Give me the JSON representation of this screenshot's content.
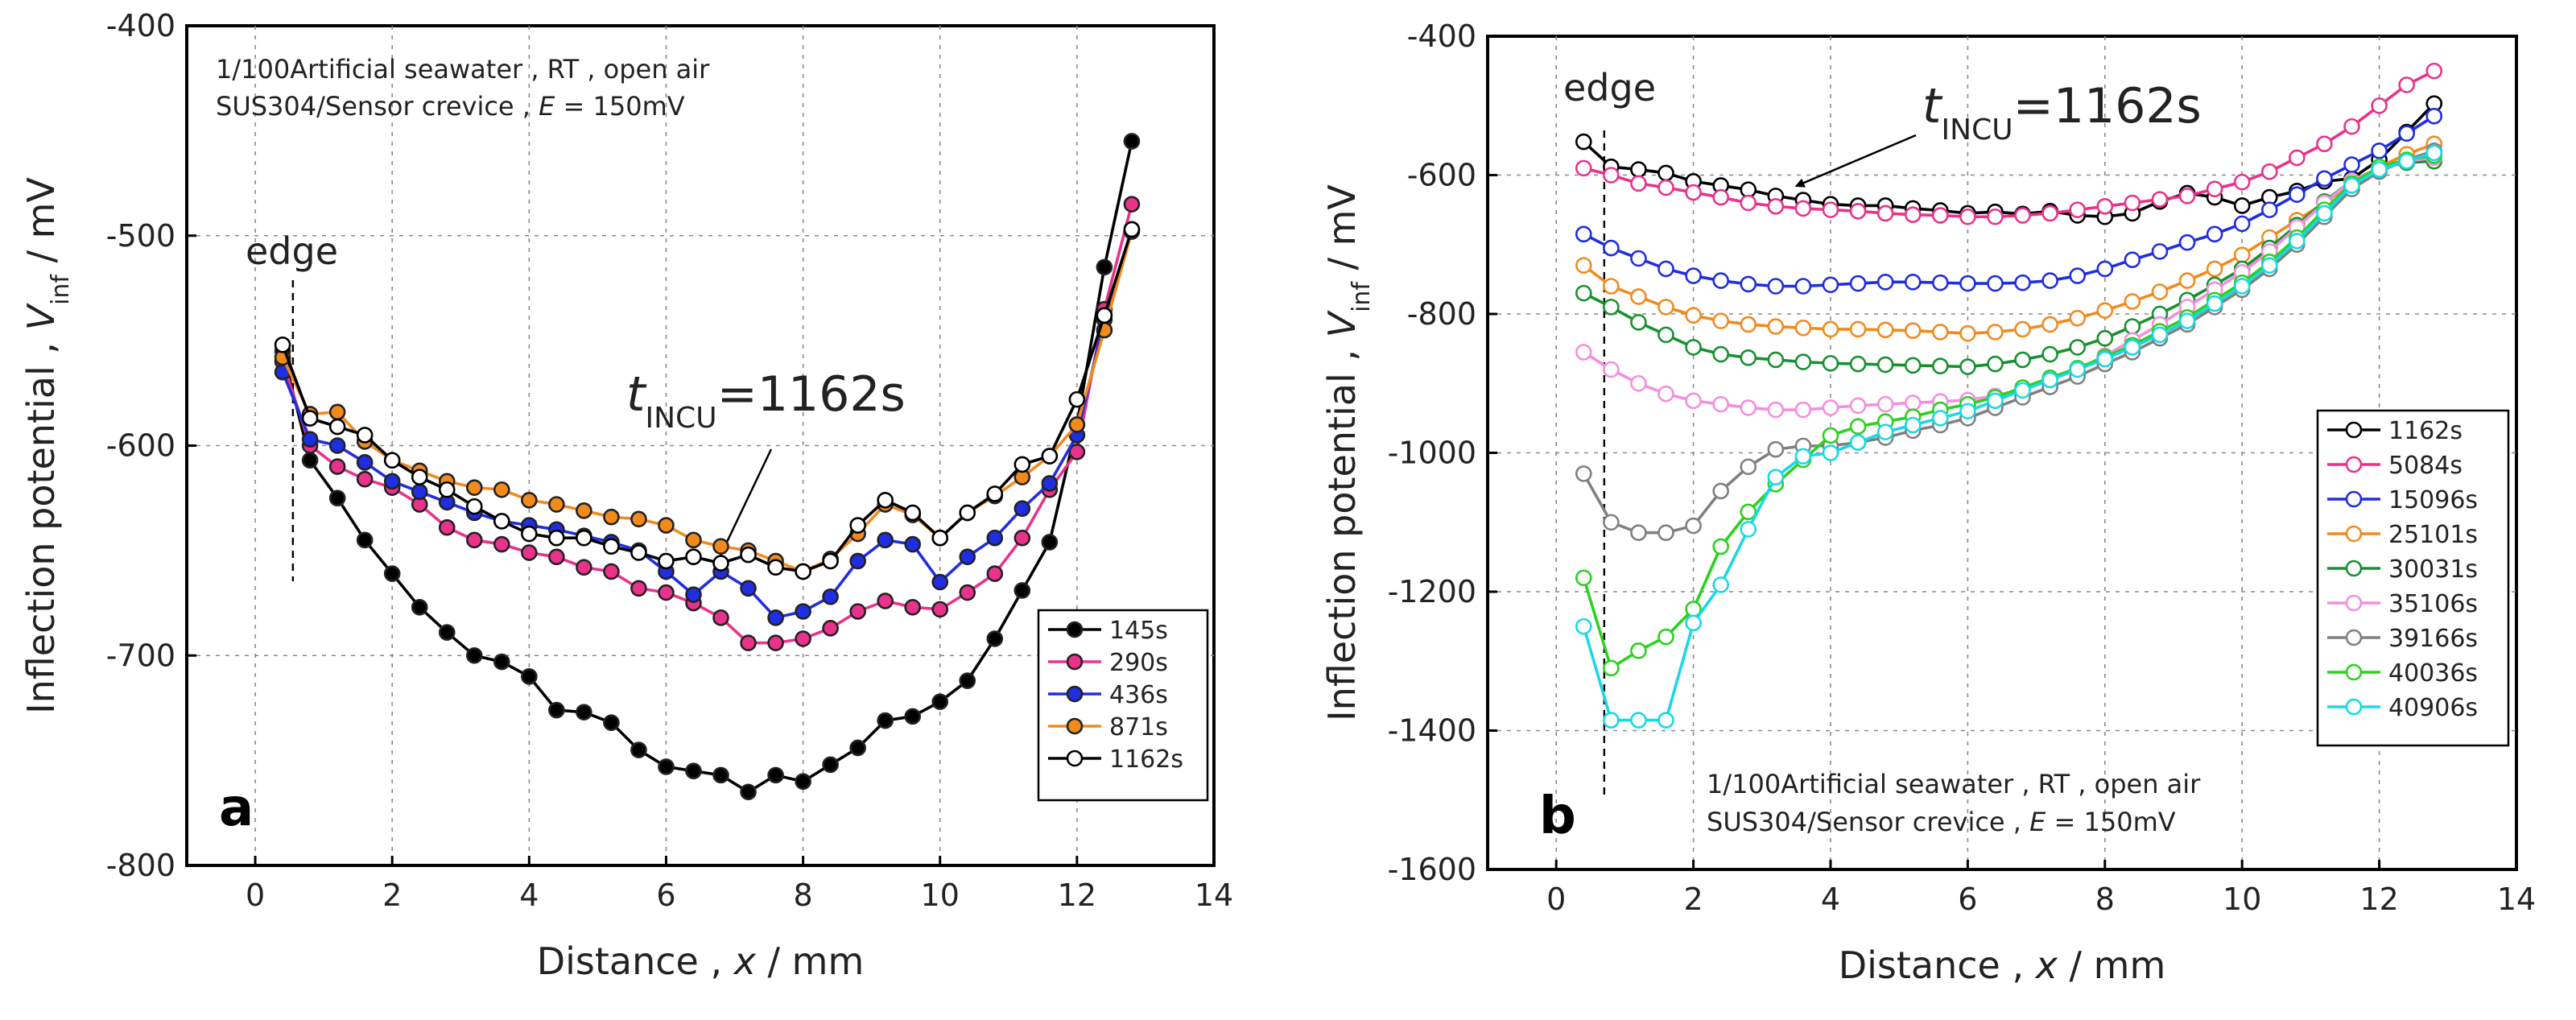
{
  "chart_data": [
    {
      "panel": "a",
      "type": "line",
      "xlabel": "Distance , x / mm",
      "ylabel": "Inflection potential , V_inf / mV",
      "xlim": [
        -1,
        14
      ],
      "ylim": [
        -800,
        -400
      ],
      "xticks": [
        0,
        2,
        4,
        6,
        8,
        10,
        12,
        14
      ],
      "yticks": [
        -400,
        -500,
        -600,
        -700,
        -800
      ],
      "annotation_lines": [
        "1/100Artificial seawater , RT , open air",
        "SUS304/Sensor crevice , E = 150mV"
      ],
      "edge_label": "edge",
      "edge_x": 0.55,
      "arrow_label": "t_INCU=1162s",
      "arrow_target": [
        6.8,
        -655
      ],
      "legend_position": "bottom-right",
      "series": [
        {
          "name": "145s",
          "color": "#000000",
          "filled": true,
          "x": [
            0.4,
            0.8,
            1.2,
            1.6,
            2.0,
            2.4,
            2.8,
            3.2,
            3.6,
            4.0,
            4.4,
            4.8,
            5.2,
            5.6,
            6.0,
            6.4,
            6.8,
            7.2,
            7.6,
            8.0,
            8.4,
            8.8,
            9.2,
            9.6,
            10.0,
            10.4,
            10.8,
            11.2,
            11.6,
            12.0,
            12.4,
            12.8
          ],
          "y": [
            -555,
            -607,
            -625,
            -645,
            -661,
            -677,
            -689,
            -700,
            -703,
            -710,
            -726,
            -727,
            -732,
            -745,
            -753,
            -755,
            -757,
            -765,
            -757,
            -760,
            -752,
            -744,
            -731,
            -729,
            -722,
            -712,
            -692,
            -669,
            -646,
            -590,
            -515,
            -455
          ]
        },
        {
          "name": "290s",
          "color": "#e8328c",
          "filled": true,
          "x": [
            0.4,
            0.8,
            1.2,
            1.6,
            2.0,
            2.4,
            2.8,
            3.2,
            3.6,
            4.0,
            4.4,
            4.8,
            5.2,
            5.6,
            6.0,
            6.4,
            6.8,
            7.2,
            7.6,
            8.0,
            8.4,
            8.8,
            9.2,
            9.6,
            10.0,
            10.4,
            10.8,
            11.2,
            11.6,
            12.0,
            12.4,
            12.8
          ],
          "y": [
            -560,
            -600,
            -610,
            -616,
            -620,
            -628,
            -639,
            -645,
            -647,
            -651,
            -653,
            -658,
            -660,
            -668,
            -670,
            -675,
            -682,
            -694,
            -694,
            -692,
            -687,
            -679,
            -674,
            -677,
            -678,
            -670,
            -661,
            -644,
            -621,
            -603,
            -535,
            -485
          ]
        },
        {
          "name": "436s",
          "color": "#1f2ee0",
          "filled": true,
          "x": [
            0.4,
            0.8,
            1.2,
            1.6,
            2.0,
            2.4,
            2.8,
            3.2,
            3.6,
            4.0,
            4.4,
            4.8,
            5.2,
            5.6,
            6.0,
            6.4,
            6.8,
            7.2,
            7.6,
            8.0,
            8.4,
            8.8,
            9.2,
            9.6,
            10.0,
            10.4,
            10.8,
            11.2,
            11.6,
            12.0,
            12.4,
            12.8
          ],
          "y": [
            -565,
            -597,
            -600,
            -608,
            -617,
            -622,
            -627,
            -632,
            -636,
            -638,
            -640,
            -643,
            -646,
            -650,
            -660,
            -671,
            -660,
            -668,
            -682,
            -679,
            -672,
            -655,
            -645,
            -647,
            -665,
            -653,
            -644,
            -630,
            -618,
            -595,
            -540,
            -497
          ]
        },
        {
          "name": "871s",
          "color": "#f28a1e",
          "filled": true,
          "x": [
            0.4,
            0.8,
            1.2,
            1.6,
            2.0,
            2.4,
            2.8,
            3.2,
            3.6,
            4.0,
            4.4,
            4.8,
            5.2,
            5.6,
            6.0,
            6.4,
            6.8,
            7.2,
            7.6,
            8.0,
            8.4,
            8.8,
            9.2,
            9.6,
            10.0,
            10.4,
            10.8,
            11.2,
            11.6,
            12.0,
            12.4,
            12.8
          ],
          "y": [
            -558,
            -585,
            -584,
            -598,
            -607,
            -612,
            -617,
            -620,
            -621,
            -626,
            -628,
            -631,
            -634,
            -635,
            -638,
            -645,
            -648,
            -650,
            -655,
            -660,
            -654,
            -642,
            -628,
            -633,
            -644,
            -632,
            -624,
            -615,
            -605,
            -590,
            -545,
            -498
          ]
        },
        {
          "name": "1162s",
          "color": "#000000",
          "filled": false,
          "x": [
            0.4,
            0.8,
            1.2,
            1.6,
            2.0,
            2.4,
            2.8,
            3.2,
            3.6,
            4.0,
            4.4,
            4.8,
            5.2,
            5.6,
            6.0,
            6.4,
            6.8,
            7.2,
            7.6,
            8.0,
            8.4,
            8.8,
            9.2,
            9.6,
            10.0,
            10.4,
            10.8,
            11.2,
            11.6,
            12.0,
            12.4,
            12.8
          ],
          "y": [
            -552,
            -587,
            -591,
            -595,
            -607,
            -615,
            -621,
            -629,
            -636,
            -642,
            -644,
            -644,
            -648,
            -651,
            -655,
            -653,
            -656,
            -652,
            -658,
            -660,
            -655,
            -638,
            -626,
            -632,
            -644,
            -632,
            -623,
            -609,
            -605,
            -578,
            -538,
            -497
          ]
        }
      ]
    },
    {
      "panel": "b",
      "type": "line",
      "xlabel": "Distance , x / mm",
      "ylabel": "Inflection potential , V_inf / mV",
      "xlim": [
        -1,
        14
      ],
      "ylim": [
        -1600,
        -400
      ],
      "xticks": [
        0,
        2,
        4,
        6,
        8,
        10,
        12,
        14
      ],
      "yticks": [
        -400,
        -600,
        -800,
        -1000,
        -1200,
        -1400,
        -1600
      ],
      "annotation_lines": [
        "1/100Artificial seawater , RT , open air",
        "SUS304/Sensor crevice , E = 150mV"
      ],
      "edge_label": "edge",
      "edge_x": 0.7,
      "arrow_label": "t_INCU=1162s",
      "arrow_target": [
        3.5,
        -625
      ],
      "legend_position": "right",
      "series": [
        {
          "name": "1162s",
          "color": "#000000",
          "filled": false,
          "x": [
            0.4,
            0.8,
            1.2,
            1.6,
            2.0,
            2.4,
            2.8,
            3.2,
            3.6,
            4.0,
            4.4,
            4.8,
            5.2,
            5.6,
            6.0,
            6.4,
            6.8,
            7.2,
            7.6,
            8.0,
            8.4,
            8.8,
            9.2,
            9.6,
            10.0,
            10.4,
            10.8,
            11.2,
            11.6,
            12.0,
            12.4,
            12.8
          ],
          "y": [
            -552,
            -588,
            -592,
            -597,
            -609,
            -615,
            -621,
            -630,
            -636,
            -642,
            -644,
            -644,
            -648,
            -651,
            -655,
            -653,
            -656,
            -652,
            -658,
            -660,
            -655,
            -638,
            -626,
            -632,
            -644,
            -632,
            -623,
            -609,
            -605,
            -578,
            -538,
            -497
          ]
        },
        {
          "name": "5084s",
          "color": "#e8328c",
          "filled": false,
          "x": [
            0.4,
            0.8,
            1.2,
            1.6,
            2.0,
            2.4,
            2.8,
            3.2,
            3.6,
            4.0,
            4.4,
            4.8,
            5.2,
            5.6,
            6.0,
            6.4,
            6.8,
            7.2,
            7.6,
            8.0,
            8.4,
            8.8,
            9.2,
            9.6,
            10.0,
            10.4,
            10.8,
            11.2,
            11.6,
            12.0,
            12.4,
            12.8
          ],
          "y": [
            -590,
            -600,
            -612,
            -618,
            -625,
            -632,
            -640,
            -645,
            -648,
            -650,
            -652,
            -655,
            -657,
            -658,
            -660,
            -660,
            -658,
            -655,
            -650,
            -645,
            -640,
            -635,
            -630,
            -620,
            -610,
            -595,
            -575,
            -555,
            -530,
            -500,
            -470,
            -450
          ]
        },
        {
          "name": "15096s",
          "color": "#1f2ee0",
          "filled": false,
          "x": [
            0.4,
            0.8,
            1.2,
            1.6,
            2.0,
            2.4,
            2.8,
            3.2,
            3.6,
            4.0,
            4.4,
            4.8,
            5.2,
            5.6,
            6.0,
            6.4,
            6.8,
            7.2,
            7.6,
            8.0,
            8.4,
            8.8,
            9.2,
            9.6,
            10.0,
            10.4,
            10.8,
            11.2,
            11.6,
            12.0,
            12.4,
            12.8
          ],
          "y": [
            -685,
            -705,
            -720,
            -735,
            -745,
            -752,
            -757,
            -760,
            -760,
            -758,
            -756,
            -754,
            -754,
            -755,
            -756,
            -756,
            -755,
            -752,
            -745,
            -735,
            -722,
            -710,
            -697,
            -685,
            -670,
            -650,
            -628,
            -605,
            -585,
            -565,
            -540,
            -515
          ]
        },
        {
          "name": "25101s",
          "color": "#f28a1e",
          "filled": false,
          "x": [
            0.4,
            0.8,
            1.2,
            1.6,
            2.0,
            2.4,
            2.8,
            3.2,
            3.6,
            4.0,
            4.4,
            4.8,
            5.2,
            5.6,
            6.0,
            6.4,
            6.8,
            7.2,
            7.6,
            8.0,
            8.4,
            8.8,
            9.2,
            9.6,
            10.0,
            10.4,
            10.8,
            11.2,
            11.6,
            12.0,
            12.4,
            12.8
          ],
          "y": [
            -730,
            -760,
            -775,
            -790,
            -802,
            -810,
            -815,
            -818,
            -820,
            -822,
            -822,
            -823,
            -824,
            -826,
            -828,
            -826,
            -822,
            -815,
            -806,
            -795,
            -782,
            -768,
            -752,
            -735,
            -715,
            -690,
            -665,
            -640,
            -612,
            -588,
            -570,
            -555
          ]
        },
        {
          "name": "30031s",
          "color": "#16912e",
          "filled": false,
          "x": [
            0.4,
            0.8,
            1.2,
            1.6,
            2.0,
            2.4,
            2.8,
            3.2,
            3.6,
            4.0,
            4.4,
            4.8,
            5.2,
            5.6,
            6.0,
            6.4,
            6.8,
            7.2,
            7.6,
            8.0,
            8.4,
            8.8,
            9.2,
            9.6,
            10.0,
            10.4,
            10.8,
            11.2,
            11.6,
            12.0,
            12.4,
            12.8
          ],
          "y": [
            -770,
            -790,
            -812,
            -830,
            -848,
            -858,
            -863,
            -866,
            -869,
            -871,
            -872,
            -873,
            -874,
            -875,
            -876,
            -872,
            -866,
            -858,
            -848,
            -835,
            -818,
            -800,
            -780,
            -758,
            -735,
            -705,
            -672,
            -638,
            -608,
            -590,
            -582,
            -580
          ]
        },
        {
          "name": "35106s",
          "color": "#f58ee0",
          "filled": false,
          "x": [
            0.4,
            0.8,
            1.2,
            1.6,
            2.0,
            2.4,
            2.8,
            3.2,
            3.6,
            4.0,
            4.4,
            4.8,
            5.2,
            5.6,
            6.0,
            6.4,
            6.8,
            7.2,
            7.6,
            8.0,
            8.4,
            8.8,
            9.2,
            9.6,
            10.0,
            10.4,
            10.8,
            11.2,
            11.6,
            12.0,
            12.4,
            12.8
          ],
          "y": [
            -855,
            -880,
            -900,
            -915,
            -925,
            -930,
            -935,
            -938,
            -938,
            -935,
            -932,
            -930,
            -928,
            -926,
            -924,
            -918,
            -908,
            -895,
            -880,
            -860,
            -838,
            -815,
            -790,
            -765,
            -740,
            -710,
            -675,
            -640,
            -608,
            -590,
            -580,
            -575
          ]
        },
        {
          "name": "39166s",
          "color": "#808080",
          "filled": false,
          "x": [
            0.4,
            0.8,
            1.2,
            1.6,
            2.0,
            2.4,
            2.8,
            3.2,
            3.6,
            4.0,
            4.4,
            4.8,
            5.2,
            5.6,
            6.0,
            6.4,
            6.8,
            7.2,
            7.6,
            8.0,
            8.4,
            8.8,
            9.2,
            9.6,
            10.0,
            10.4,
            10.8,
            11.2,
            11.6,
            12.0,
            12.4,
            12.8
          ],
          "y": [
            -1030,
            -1100,
            -1115,
            -1115,
            -1105,
            -1055,
            -1020,
            -995,
            -990,
            -990,
            -985,
            -978,
            -968,
            -960,
            -950,
            -935,
            -920,
            -905,
            -890,
            -872,
            -855,
            -835,
            -815,
            -790,
            -765,
            -735,
            -700,
            -660,
            -620,
            -595,
            -578,
            -565
          ]
        },
        {
          "name": "40036s",
          "color": "#2bd11f",
          "filled": false,
          "x": [
            0.4,
            0.8,
            1.2,
            1.6,
            2.0,
            2.4,
            2.8,
            3.2,
            3.6,
            4.0,
            4.4,
            4.8,
            5.2,
            5.6,
            6.0,
            6.4,
            6.8,
            7.2,
            7.6,
            8.0,
            8.4,
            8.8,
            9.2,
            9.6,
            10.0,
            10.4,
            10.8,
            11.2,
            11.6,
            12.0,
            12.4,
            12.8
          ],
          "y": [
            -1180,
            -1310,
            -1285,
            -1265,
            -1225,
            -1135,
            -1085,
            -1045,
            -1010,
            -975,
            -962,
            -955,
            -948,
            -938,
            -930,
            -920,
            -906,
            -892,
            -878,
            -862,
            -845,
            -825,
            -805,
            -780,
            -755,
            -725,
            -690,
            -650,
            -612,
            -588,
            -578,
            -572
          ]
        },
        {
          "name": "40906s",
          "color": "#19d8e6",
          "filled": false,
          "x": [
            0.4,
            0.8,
            1.2,
            1.6,
            2.0,
            2.4,
            2.8,
            3.2,
            3.6,
            4.0,
            4.4,
            4.8,
            5.2,
            5.6,
            6.0,
            6.4,
            6.8,
            7.2,
            7.6,
            8.0,
            8.4,
            8.8,
            9.2,
            9.6,
            10.0,
            10.4,
            10.8,
            11.2,
            11.6,
            12.0,
            12.4,
            12.8
          ],
          "y": [
            -1250,
            -1385,
            -1385,
            -1385,
            -1245,
            -1190,
            -1110,
            -1035,
            -1005,
            -1000,
            -985,
            -970,
            -960,
            -950,
            -940,
            -925,
            -910,
            -895,
            -880,
            -865,
            -848,
            -830,
            -810,
            -785,
            -760,
            -730,
            -695,
            -655,
            -615,
            -592,
            -580,
            -568
          ]
        }
      ]
    }
  ]
}
